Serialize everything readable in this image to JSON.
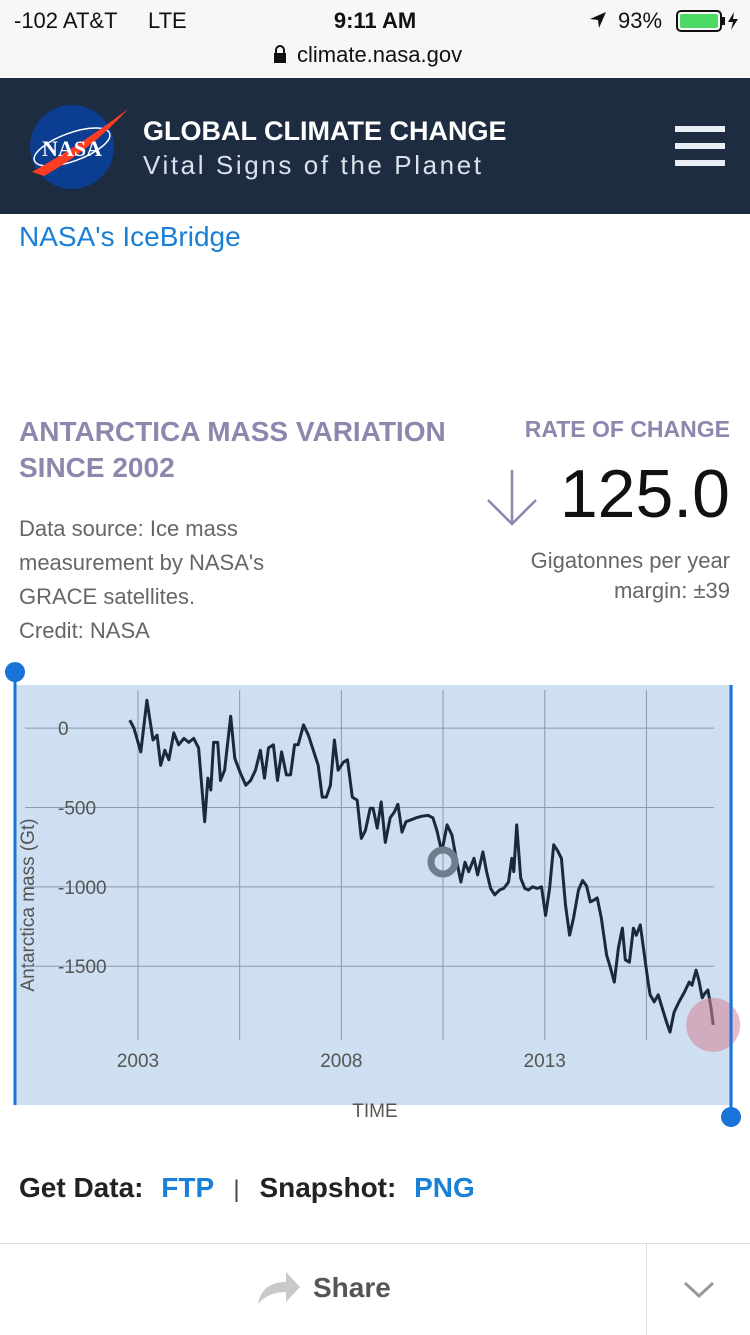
{
  "status_bar": {
    "carrier": "-102 AT&T",
    "network": "LTE",
    "time": "9:11 AM",
    "battery": "93%"
  },
  "url": "climate.nasa.gov",
  "header": {
    "logo": "NASA",
    "title": "GLOBAL CLIMATE CHANGE",
    "subtitle": "Vital Signs of the Planet"
  },
  "link": "NASA's IceBridge",
  "section": {
    "title_lines": [
      "ANTARCTICA MASS VARIATION",
      "SINCE 2002"
    ],
    "source_lines": [
      "Data source: Ice mass",
      "measurement by NASA's",
      "GRACE satellites.",
      "Credit: NASA"
    ]
  },
  "rate": {
    "label": "RATE OF CHANGE",
    "value": "125.0",
    "unit": "Gigatonnes per year",
    "margin": "margin: ±39"
  },
  "chart_data": {
    "type": "line",
    "ylabel": "Antarctica mass (Gt)",
    "xlabel": "TIME",
    "xlim": [
      2000.1,
      2017.8
    ],
    "ylim": [
      -1965,
      240
    ],
    "xticks": [
      2003,
      2008,
      2013
    ],
    "x_minor_gridlines": [
      2005.5,
      2010.5,
      2015.5
    ],
    "yticks": [
      0,
      -500,
      -1000,
      -1500
    ],
    "grid": true,
    "series": [
      {
        "name": "Antarctica mass",
        "color": "#1b2a3a",
        "x": [
          2002.8,
          2002.9,
          2003.07,
          2003.22,
          2003.37,
          2003.47,
          2003.56,
          2003.66,
          2003.76,
          2003.88,
          2004.0,
          2004.13,
          2004.25,
          2004.37,
          2004.49,
          2004.64,
          2004.72,
          2004.79,
          2004.86,
          2004.96,
          2005.03,
          2005.13,
          2005.28,
          2005.38,
          2005.52,
          2005.65,
          2005.77,
          2005.89,
          2006.01,
          2006.11,
          2006.21,
          2006.33,
          2006.43,
          2006.53,
          2006.65,
          2006.75,
          2006.85,
          2006.94,
          2007.07,
          2007.19,
          2007.31,
          2007.43,
          2007.53,
          2007.63,
          2007.73,
          2007.83,
          2007.92,
          2008.05,
          2008.15,
          2008.27,
          2008.39,
          2008.49,
          2008.59,
          2008.71,
          2008.78,
          2008.88,
          2008.98,
          2009.08,
          2009.2,
          2009.3,
          2009.39,
          2009.49,
          2009.59,
          2009.69,
          2009.84,
          2009.98,
          2010.13,
          2010.25,
          2010.35,
          2010.47,
          2010.6,
          2010.72,
          2010.82,
          2010.94,
          2011.04,
          2011.13,
          2011.26,
          2011.35,
          2011.48,
          2011.57,
          2011.67,
          2011.77,
          2011.89,
          2011.99,
          2012.11,
          2012.19,
          2012.24,
          2012.31,
          2012.41,
          2012.51,
          2012.6,
          2012.7,
          2012.82,
          2012.92,
          2013.02,
          2013.12,
          2013.22,
          2013.31,
          2013.41,
          2013.51,
          2013.61,
          2013.71,
          2013.83,
          2013.93,
          2014.03,
          2014.12,
          2014.2,
          2014.29,
          2014.39,
          2014.52,
          2014.61,
          2014.71,
          2014.81,
          2014.91,
          2014.98,
          2015.08,
          2015.18,
          2015.25,
          2015.35,
          2015.45,
          2015.54,
          2015.59,
          2015.69,
          2015.79,
          2015.89,
          2015.99,
          2016.08,
          2016.18,
          2016.3,
          2016.43,
          2016.55,
          2016.62,
          2016.72,
          2016.79,
          2016.87,
          2016.94,
          2017.01,
          2017.09,
          2017.14
        ],
        "values": [
          50,
          0,
          -150,
          175,
          -75,
          -45,
          -235,
          -140,
          -200,
          -30,
          -105,
          -65,
          -90,
          -65,
          -125,
          -590,
          -315,
          -390,
          -90,
          -90,
          -330,
          -265,
          75,
          -190,
          -285,
          -360,
          -330,
          -265,
          -140,
          -315,
          -125,
          -105,
          -330,
          -150,
          -295,
          -295,
          -105,
          -105,
          20,
          -45,
          -140,
          -235,
          -435,
          -435,
          -360,
          -75,
          -265,
          -215,
          -200,
          -435,
          -455,
          -695,
          -645,
          -505,
          -505,
          -630,
          -465,
          -720,
          -565,
          -530,
          -480,
          -655,
          -590,
          -580,
          -565,
          -555,
          -550,
          -565,
          -645,
          -780,
          -610,
          -675,
          -820,
          -970,
          -845,
          -905,
          -820,
          -925,
          -780,
          -905,
          -1010,
          -1050,
          -1020,
          -1010,
          -970,
          -820,
          -905,
          -610,
          -945,
          -1010,
          -1020,
          -1000,
          -1010,
          -1000,
          -1180,
          -1010,
          -735,
          -770,
          -820,
          -1115,
          -1305,
          -1195,
          -1020,
          -960,
          -995,
          -1095,
          -1085,
          -1070,
          -1195,
          -1430,
          -1505,
          -1600,
          -1385,
          -1260,
          -1460,
          -1475,
          -1260,
          -1305,
          -1240,
          -1430,
          -1600,
          -1680,
          -1725,
          -1680,
          -1765,
          -1850,
          -1915,
          -1790,
          -1725,
          -1665,
          -1600,
          -1620,
          -1525,
          -1590,
          -1700,
          -1670,
          -1650,
          -1765,
          -1870
        ]
      }
    ]
  },
  "footer": {
    "get_data": "Get Data:",
    "ftp": "FTP",
    "separator": "|",
    "snapshot": "Snapshot:",
    "png": "PNG",
    "share": "Share"
  }
}
